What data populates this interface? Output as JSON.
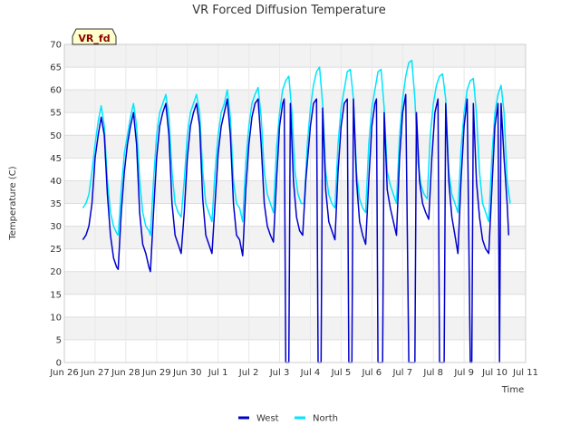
{
  "chart_data": {
    "type": "line",
    "title": "VR Forced Diffusion Temperature",
    "xlabel": "Time",
    "ylabel": "Temperature (C)",
    "badge": "VR_fd",
    "ylim": [
      0,
      70
    ],
    "yticks": [
      0,
      5,
      10,
      15,
      20,
      25,
      30,
      35,
      40,
      45,
      50,
      55,
      60,
      65,
      70
    ],
    "xlim": [
      0,
      15
    ],
    "xticks": [
      {
        "pos": 0,
        "label": "Jun 26"
      },
      {
        "pos": 1,
        "label": "Jun 27"
      },
      {
        "pos": 2,
        "label": "Jun 28"
      },
      {
        "pos": 3,
        "label": "Jun 29"
      },
      {
        "pos": 4,
        "label": "Jun 30"
      },
      {
        "pos": 5,
        "label": "Jul 1"
      },
      {
        "pos": 6,
        "label": "Jul 2"
      },
      {
        "pos": 7,
        "label": "Jul 3"
      },
      {
        "pos": 8,
        "label": "Jul 4"
      },
      {
        "pos": 9,
        "label": "Jul 5"
      },
      {
        "pos": 10,
        "label": "Jul 6"
      },
      {
        "pos": 11,
        "label": "Jul 7"
      },
      {
        "pos": 12,
        "label": "Jul 8"
      },
      {
        "pos": 13,
        "label": "Jul 9"
      },
      {
        "pos": 14,
        "label": "Jul 10"
      },
      {
        "pos": 15,
        "label": "Jul 11"
      }
    ],
    "grid": true,
    "legend_position": "bottom",
    "series": [
      {
        "name": "West",
        "color": "#0000cc",
        "points": [
          [
            0.6,
            27
          ],
          [
            0.7,
            28
          ],
          [
            0.8,
            30
          ],
          [
            0.9,
            35
          ],
          [
            1.0,
            45
          ],
          [
            1.1,
            50
          ],
          [
            1.2,
            54
          ],
          [
            1.3,
            50
          ],
          [
            1.4,
            37
          ],
          [
            1.5,
            28
          ],
          [
            1.6,
            23
          ],
          [
            1.7,
            21
          ],
          [
            1.75,
            20.5
          ],
          [
            1.85,
            33
          ],
          [
            1.95,
            42
          ],
          [
            2.05,
            48
          ],
          [
            2.15,
            52
          ],
          [
            2.25,
            55
          ],
          [
            2.35,
            48
          ],
          [
            2.45,
            33
          ],
          [
            2.55,
            26
          ],
          [
            2.65,
            24
          ],
          [
            2.75,
            21
          ],
          [
            2.8,
            20
          ],
          [
            2.9,
            33
          ],
          [
            3.0,
            45
          ],
          [
            3.1,
            52
          ],
          [
            3.2,
            55
          ],
          [
            3.3,
            57
          ],
          [
            3.4,
            50
          ],
          [
            3.5,
            35
          ],
          [
            3.6,
            28
          ],
          [
            3.7,
            26
          ],
          [
            3.8,
            24
          ],
          [
            3.9,
            33
          ],
          [
            4.0,
            45
          ],
          [
            4.1,
            52
          ],
          [
            4.2,
            55
          ],
          [
            4.3,
            57
          ],
          [
            4.4,
            52
          ],
          [
            4.5,
            36
          ],
          [
            4.6,
            28
          ],
          [
            4.7,
            26
          ],
          [
            4.8,
            24
          ],
          [
            4.9,
            35
          ],
          [
            5.0,
            46
          ],
          [
            5.1,
            52
          ],
          [
            5.2,
            55
          ],
          [
            5.3,
            58
          ],
          [
            5.4,
            50
          ],
          [
            5.5,
            35
          ],
          [
            5.6,
            28
          ],
          [
            5.7,
            27
          ],
          [
            5.8,
            23.5
          ],
          [
            5.9,
            38
          ],
          [
            6.0,
            48
          ],
          [
            6.1,
            54
          ],
          [
            6.2,
            57
          ],
          [
            6.3,
            58
          ],
          [
            6.4,
            48
          ],
          [
            6.5,
            35
          ],
          [
            6.6,
            30
          ],
          [
            6.7,
            28
          ],
          [
            6.8,
            26.5
          ],
          [
            6.9,
            40
          ],
          [
            7.0,
            52
          ],
          [
            7.1,
            57
          ],
          [
            7.15,
            58
          ],
          [
            7.2,
            0
          ],
          [
            7.3,
            0
          ],
          [
            7.35,
            57
          ],
          [
            7.45,
            40
          ],
          [
            7.55,
            32
          ],
          [
            7.65,
            29
          ],
          [
            7.75,
            28
          ],
          [
            7.85,
            40
          ],
          [
            8.0,
            52
          ],
          [
            8.1,
            57
          ],
          [
            8.2,
            58
          ],
          [
            8.25,
            0
          ],
          [
            8.35,
            0
          ],
          [
            8.4,
            56
          ],
          [
            8.5,
            38
          ],
          [
            8.6,
            31
          ],
          [
            8.7,
            29
          ],
          [
            8.8,
            27
          ],
          [
            8.9,
            42
          ],
          [
            9.0,
            52
          ],
          [
            9.1,
            57
          ],
          [
            9.2,
            58
          ],
          [
            9.25,
            0
          ],
          [
            9.35,
            0
          ],
          [
            9.4,
            58
          ],
          [
            9.5,
            40
          ],
          [
            9.6,
            31
          ],
          [
            9.7,
            28
          ],
          [
            9.8,
            26
          ],
          [
            9.9,
            40
          ],
          [
            10.0,
            52
          ],
          [
            10.1,
            57
          ],
          [
            10.15,
            58
          ],
          [
            10.2,
            0
          ],
          [
            10.35,
            0
          ],
          [
            10.4,
            55
          ],
          [
            10.5,
            38
          ],
          [
            10.6,
            34
          ],
          [
            10.7,
            31
          ],
          [
            10.8,
            28
          ],
          [
            10.9,
            45
          ],
          [
            11.0,
            55
          ],
          [
            11.1,
            59
          ],
          [
            11.2,
            0
          ],
          [
            11.4,
            0
          ],
          [
            11.45,
            55
          ],
          [
            11.55,
            40
          ],
          [
            11.65,
            35
          ],
          [
            11.75,
            33
          ],
          [
            11.85,
            31.5
          ],
          [
            11.95,
            45
          ],
          [
            12.05,
            55
          ],
          [
            12.15,
            58
          ],
          [
            12.2,
            0
          ],
          [
            12.35,
            0
          ],
          [
            12.4,
            57
          ],
          [
            12.5,
            40
          ],
          [
            12.6,
            32
          ],
          [
            12.7,
            28
          ],
          [
            12.8,
            24
          ],
          [
            12.9,
            40
          ],
          [
            13.0,
            52
          ],
          [
            13.1,
            58
          ],
          [
            13.2,
            0
          ],
          [
            13.25,
            0
          ],
          [
            13.3,
            57
          ],
          [
            13.4,
            40
          ],
          [
            13.5,
            32
          ],
          [
            13.6,
            27
          ],
          [
            13.7,
            25
          ],
          [
            13.8,
            24
          ],
          [
            13.9,
            38
          ],
          [
            14.0,
            52
          ],
          [
            14.1,
            57
          ],
          [
            14.15,
            0
          ],
          [
            14.2,
            57
          ],
          [
            14.3,
            45
          ],
          [
            14.4,
            35
          ],
          [
            14.45,
            28
          ]
        ]
      },
      {
        "name": "North",
        "color": "#00e5ff",
        "points": [
          [
            0.6,
            34
          ],
          [
            0.7,
            35
          ],
          [
            0.8,
            37
          ],
          [
            0.9,
            42
          ],
          [
            1.0,
            48
          ],
          [
            1.1,
            53
          ],
          [
            1.2,
            56.5
          ],
          [
            1.3,
            52
          ],
          [
            1.4,
            40
          ],
          [
            1.5,
            33
          ],
          [
            1.6,
            30
          ],
          [
            1.7,
            28.5
          ],
          [
            1.75,
            28
          ],
          [
            1.85,
            38
          ],
          [
            1.95,
            46
          ],
          [
            2.05,
            50
          ],
          [
            2.15,
            54
          ],
          [
            2.25,
            57
          ],
          [
            2.35,
            52
          ],
          [
            2.45,
            40
          ],
          [
            2.55,
            33
          ],
          [
            2.65,
            30
          ],
          [
            2.75,
            29
          ],
          [
            2.8,
            28
          ],
          [
            2.9,
            40
          ],
          [
            3.0,
            50
          ],
          [
            3.1,
            55
          ],
          [
            3.2,
            57
          ],
          [
            3.3,
            59
          ],
          [
            3.4,
            54
          ],
          [
            3.5,
            42
          ],
          [
            3.6,
            35
          ],
          [
            3.7,
            33
          ],
          [
            3.8,
            32
          ],
          [
            3.9,
            40
          ],
          [
            4.0,
            50
          ],
          [
            4.1,
            55
          ],
          [
            4.2,
            57
          ],
          [
            4.3,
            59
          ],
          [
            4.4,
            55
          ],
          [
            4.5,
            42
          ],
          [
            4.6,
            35
          ],
          [
            4.7,
            33
          ],
          [
            4.8,
            31
          ],
          [
            4.9,
            42
          ],
          [
            5.0,
            50
          ],
          [
            5.1,
            55
          ],
          [
            5.2,
            57
          ],
          [
            5.3,
            60
          ],
          [
            5.4,
            54
          ],
          [
            5.5,
            40
          ],
          [
            5.6,
            35
          ],
          [
            5.7,
            34
          ],
          [
            5.8,
            31
          ],
          [
            5.9,
            44
          ],
          [
            6.0,
            52
          ],
          [
            6.1,
            57
          ],
          [
            6.2,
            59
          ],
          [
            6.3,
            60.5
          ],
          [
            6.4,
            54
          ],
          [
            6.5,
            42
          ],
          [
            6.6,
            37
          ],
          [
            6.7,
            35
          ],
          [
            6.8,
            33
          ],
          [
            6.9,
            47
          ],
          [
            7.0,
            55
          ],
          [
            7.1,
            60
          ],
          [
            7.2,
            62
          ],
          [
            7.3,
            63
          ],
          [
            7.4,
            55
          ],
          [
            7.5,
            42
          ],
          [
            7.6,
            37
          ],
          [
            7.7,
            35
          ],
          [
            7.8,
            35
          ],
          [
            7.9,
            48
          ],
          [
            8.0,
            56
          ],
          [
            8.1,
            61
          ],
          [
            8.2,
            64
          ],
          [
            8.3,
            65
          ],
          [
            8.4,
            57
          ],
          [
            8.5,
            42
          ],
          [
            8.6,
            37
          ],
          [
            8.7,
            35
          ],
          [
            8.8,
            34
          ],
          [
            8.9,
            48
          ],
          [
            9.0,
            56
          ],
          [
            9.1,
            60
          ],
          [
            9.2,
            64
          ],
          [
            9.3,
            64.5
          ],
          [
            9.4,
            58
          ],
          [
            9.5,
            42
          ],
          [
            9.6,
            36
          ],
          [
            9.7,
            34
          ],
          [
            9.8,
            33
          ],
          [
            9.9,
            48
          ],
          [
            10.0,
            56
          ],
          [
            10.1,
            60
          ],
          [
            10.2,
            64
          ],
          [
            10.3,
            64.5
          ],
          [
            10.4,
            56
          ],
          [
            10.5,
            42
          ],
          [
            10.6,
            39
          ],
          [
            10.7,
            37
          ],
          [
            10.8,
            35
          ],
          [
            10.9,
            50
          ],
          [
            11.0,
            58
          ],
          [
            11.1,
            63
          ],
          [
            11.2,
            66
          ],
          [
            11.3,
            66.5
          ],
          [
            11.4,
            58
          ],
          [
            11.5,
            44
          ],
          [
            11.6,
            39
          ],
          [
            11.7,
            37
          ],
          [
            11.8,
            36
          ],
          [
            11.9,
            50
          ],
          [
            12.0,
            57
          ],
          [
            12.1,
            61
          ],
          [
            12.2,
            63
          ],
          [
            12.3,
            63.5
          ],
          [
            12.4,
            58
          ],
          [
            12.5,
            42
          ],
          [
            12.6,
            37
          ],
          [
            12.7,
            35
          ],
          [
            12.8,
            33
          ],
          [
            12.9,
            47
          ],
          [
            13.0,
            55
          ],
          [
            13.1,
            60
          ],
          [
            13.2,
            62
          ],
          [
            13.3,
            62.5
          ],
          [
            13.4,
            55
          ],
          [
            13.5,
            42
          ],
          [
            13.6,
            35
          ],
          [
            13.7,
            33
          ],
          [
            13.8,
            31
          ],
          [
            13.9,
            45
          ],
          [
            14.0,
            55
          ],
          [
            14.1,
            59
          ],
          [
            14.2,
            61
          ],
          [
            14.3,
            55
          ],
          [
            14.4,
            40
          ],
          [
            14.5,
            35
          ]
        ]
      }
    ]
  }
}
